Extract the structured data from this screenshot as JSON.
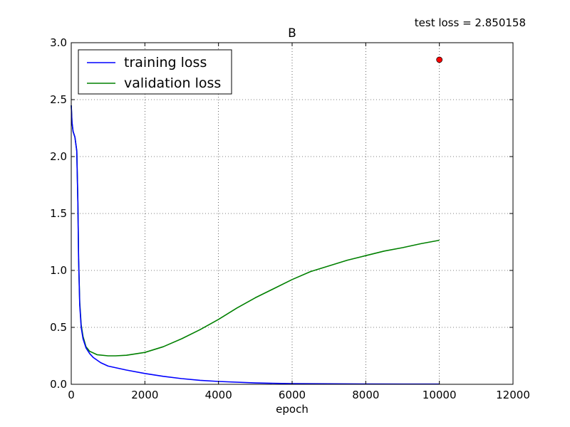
{
  "chart_data": {
    "type": "line",
    "title": "B",
    "annotation": "test loss = 2.850158",
    "xlabel": "epoch",
    "ylabel": "",
    "xlim": [
      0,
      12000
    ],
    "ylim": [
      0.0,
      3.0
    ],
    "x_ticks": [
      0,
      2000,
      4000,
      6000,
      8000,
      10000,
      12000
    ],
    "x_tick_labels": [
      "0",
      "2000",
      "4000",
      "6000",
      "8000",
      "10000",
      "12000"
    ],
    "y_ticks": [
      0.0,
      0.5,
      1.0,
      1.5,
      2.0,
      2.5,
      3.0
    ],
    "y_tick_labels": [
      "0.0",
      "0.5",
      "1.0",
      "1.5",
      "2.0",
      "2.5",
      "3.0"
    ],
    "grid": true,
    "legend_position": "top-left",
    "series": [
      {
        "name": "training loss",
        "color": "#0000ff",
        "points": [
          [
            0,
            2.45
          ],
          [
            20,
            2.3
          ],
          [
            50,
            2.22
          ],
          [
            100,
            2.17
          ],
          [
            150,
            2.05
          ],
          [
            180,
            1.6
          ],
          [
            200,
            1.1
          ],
          [
            230,
            0.7
          ],
          [
            270,
            0.5
          ],
          [
            320,
            0.4
          ],
          [
            400,
            0.32
          ],
          [
            500,
            0.27
          ],
          [
            600,
            0.235
          ],
          [
            800,
            0.19
          ],
          [
            1000,
            0.16
          ],
          [
            1500,
            0.125
          ],
          [
            2000,
            0.095
          ],
          [
            2500,
            0.07
          ],
          [
            3000,
            0.05
          ],
          [
            3500,
            0.035
          ],
          [
            4000,
            0.025
          ],
          [
            5000,
            0.012
          ],
          [
            6000,
            0.006
          ],
          [
            7000,
            0.004
          ],
          [
            8000,
            0.003
          ],
          [
            9000,
            0.002
          ],
          [
            10000,
            0.002
          ]
        ]
      },
      {
        "name": "validation loss",
        "color": "#008000",
        "points": [
          [
            0,
            2.45
          ],
          [
            20,
            2.3
          ],
          [
            50,
            2.22
          ],
          [
            100,
            2.17
          ],
          [
            150,
            2.05
          ],
          [
            180,
            1.6
          ],
          [
            200,
            1.1
          ],
          [
            230,
            0.72
          ],
          [
            270,
            0.52
          ],
          [
            320,
            0.42
          ],
          [
            400,
            0.33
          ],
          [
            500,
            0.29
          ],
          [
            700,
            0.26
          ],
          [
            1000,
            0.25
          ],
          [
            1200,
            0.25
          ],
          [
            1500,
            0.255
          ],
          [
            2000,
            0.28
          ],
          [
            2500,
            0.33
          ],
          [
            3000,
            0.4
          ],
          [
            3500,
            0.48
          ],
          [
            4000,
            0.57
          ],
          [
            4500,
            0.67
          ],
          [
            5000,
            0.76
          ],
          [
            5500,
            0.84
          ],
          [
            6000,
            0.92
          ],
          [
            6500,
            0.99
          ],
          [
            7000,
            1.04
          ],
          [
            7500,
            1.09
          ],
          [
            8000,
            1.13
          ],
          [
            8500,
            1.17
          ],
          [
            9000,
            1.2
          ],
          [
            9500,
            1.235
          ],
          [
            10000,
            1.265
          ]
        ]
      }
    ],
    "markers": [
      {
        "x": 10000,
        "y": 2.850158,
        "color": "#ff0000"
      }
    ]
  }
}
